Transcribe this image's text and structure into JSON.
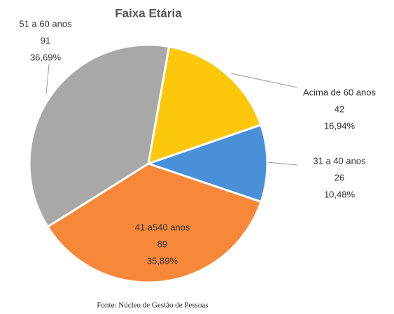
{
  "chart_data": {
    "type": "pie",
    "title": "Faixa Etária",
    "categories": [
      "Acima de 60 anos",
      "31 a 40 anos",
      "41 a540 anos",
      "51 a 60 anos"
    ],
    "values": [
      42,
      26,
      89,
      91
    ],
    "percentages": [
      16.94,
      10.48,
      35.89,
      36.69
    ],
    "percentage_labels": [
      "16,94%",
      "10,48%",
      "35,89%",
      "36,69%"
    ],
    "colors": [
      "#fdc70c",
      "#4a90d9",
      "#f7883a",
      "#a8a8a8"
    ],
    "source": "Fonte: Núcleo de Gestão de Pessoas"
  }
}
